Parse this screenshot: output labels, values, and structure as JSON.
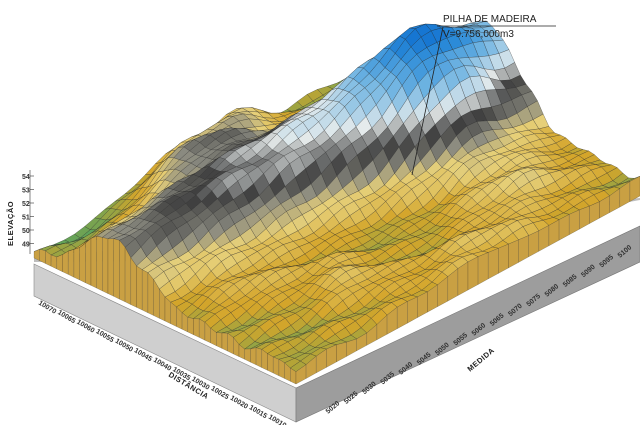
{
  "annotation": {
    "title": "PILHA DE MADEIRA",
    "volume": "V=9.756,000m3"
  },
  "axes": {
    "z_label": "ELEVAÇÃO",
    "z_ticks": [
      "54",
      "53",
      "52",
      "51",
      "50",
      "49"
    ],
    "x_label": "DISTÂNCIA",
    "x_ticks": [
      "10070",
      "10065",
      "10060",
      "10055",
      "10050",
      "10045",
      "10040",
      "10035",
      "10030",
      "10025",
      "10020",
      "10015",
      "10010"
    ],
    "y_label": "MEDIDA",
    "y_ticks": [
      "5020",
      "5025",
      "5030",
      "5035",
      "5040",
      "5045",
      "5050",
      "5055",
      "5060",
      "5065",
      "5070",
      "5075",
      "5080",
      "5085",
      "5090",
      "5095",
      "5100"
    ]
  },
  "colors": {
    "low": "#5fa35a",
    "mid_low": "#d4a52a",
    "mid": "#e6d07a",
    "dark": "#3f3f3f",
    "light": "#e7ecec",
    "high": "#2b8ad8",
    "peak": "#1676d2",
    "base_front": "#d0d0d0",
    "base_side": "#9c9c9c",
    "base_top": "#bdbdbd",
    "mesh": "#1e1e1e"
  }
}
